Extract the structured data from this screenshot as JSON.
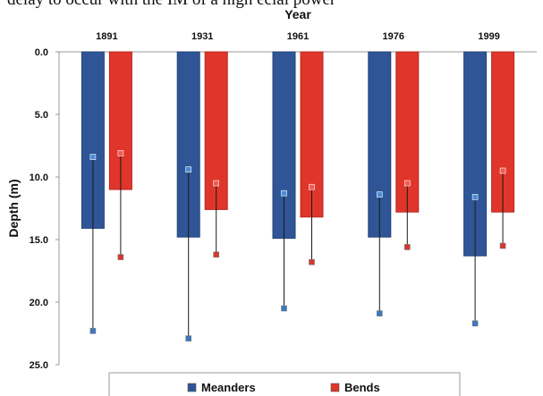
{
  "top_text": "delay to occur with the IM of a high ecial power",
  "chart_data": {
    "type": "bar",
    "title": "",
    "xlabel": "Year",
    "ylabel": "Depth (m)",
    "categories": [
      "1891",
      "1931",
      "1961",
      "1976",
      "1999"
    ],
    "y_ticks": [
      "0.0",
      "5.0",
      "10.0",
      "15.0",
      "20.0",
      "25.0"
    ],
    "ylim": [
      0,
      25
    ],
    "y_inverted": true,
    "x_axis_position": "top",
    "grid": false,
    "legend_position": "bottom",
    "series": [
      {
        "name": "Meanders",
        "color": "#2f5597",
        "values": [
          14.1,
          14.8,
          14.9,
          14.8,
          16.3
        ],
        "range_min": [
          8.4,
          9.4,
          11.3,
          11.4,
          11.6
        ],
        "range_max": [
          22.3,
          22.9,
          20.5,
          20.9,
          21.7
        ]
      },
      {
        "name": "Bends",
        "color": "#e0352b",
        "values": [
          11.0,
          12.6,
          13.2,
          12.8,
          12.8
        ],
        "range_min": [
          8.1,
          10.5,
          10.8,
          10.5,
          9.5
        ],
        "range_max": [
          16.4,
          16.2,
          16.8,
          15.6,
          15.5
        ]
      }
    ]
  }
}
